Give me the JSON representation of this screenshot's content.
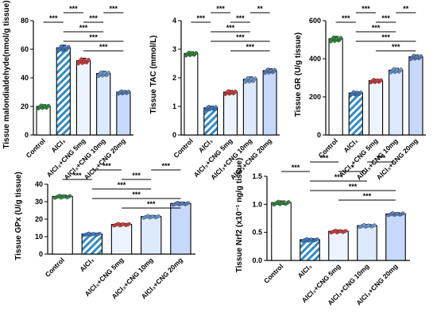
{
  "colors": {
    "control_fill": "#ffffff",
    "alcl3_hatch": "#2e8bc4",
    "cng5_fill": "#eef4ff",
    "cng10_fill": "#dde9ff",
    "cng20_fill": "#c6d9fb",
    "control_dots": "#2e8b3a",
    "alcl3_dots": "#3b7ec8",
    "cng5_dots": "#d53c3c",
    "cng10_dots": "#6a9ad6",
    "cng20_dots": "#5b7fc0"
  },
  "chart_data": [
    {
      "type": "bar",
      "ylabel": "Tissue malondialdehyde(nmol/g tissue)",
      "categories": [
        "Control",
        "AlCl3",
        "AlCl3+CNG 5mg",
        "AlCl3+CNG 10mg",
        "AlCl3+CNG 20mg"
      ],
      "values": [
        20,
        61,
        52,
        43,
        30
      ],
      "errors": [
        1.2,
        1.8,
        1.7,
        1.5,
        1.0
      ],
      "ylim": [
        0,
        80
      ],
      "yticks": [
        0,
        20,
        40,
        60,
        80
      ],
      "significance": [
        {
          "from": 0,
          "to": 1,
          "label": "***"
        },
        {
          "from": 1,
          "to": 2,
          "label": "***"
        },
        {
          "from": 1,
          "to": 3,
          "label": "***"
        },
        {
          "from": 1,
          "to": 4,
          "label": "***"
        },
        {
          "from": 2,
          "to": 3,
          "label": "***"
        },
        {
          "from": 2,
          "to": 4,
          "label": "***"
        },
        {
          "from": 3,
          "to": 4,
          "label": "***"
        }
      ]
    },
    {
      "type": "bar",
      "ylabel": "Tissue TAC (mmol/L)",
      "categories": [
        "Control",
        "AlCl3",
        "AlCl3+CNG 5mg",
        "AlCl3+CNG 10mg",
        "AlCl3+CNG 20mg"
      ],
      "values": [
        2.85,
        0.95,
        1.5,
        1.95,
        2.25
      ],
      "errors": [
        0.06,
        0.06,
        0.06,
        0.08,
        0.07
      ],
      "ylim": [
        0,
        4
      ],
      "yticks": [
        0,
        1,
        2,
        3,
        4
      ],
      "significance": [
        {
          "from": 0,
          "to": 1,
          "label": "***"
        },
        {
          "from": 1,
          "to": 2,
          "label": "***"
        },
        {
          "from": 1,
          "to": 3,
          "label": "***"
        },
        {
          "from": 1,
          "to": 4,
          "label": "***"
        },
        {
          "from": 2,
          "to": 3,
          "label": "***"
        },
        {
          "from": 2,
          "to": 4,
          "label": "***"
        },
        {
          "from": 3,
          "to": 4,
          "label": "**"
        }
      ]
    },
    {
      "type": "bar",
      "ylabel": "Tissue GR (U/g tissue)",
      "categories": [
        "Control",
        "AlCl3",
        "AlCl3+CNG 5mg",
        "AlCl3+CNG 10mg",
        "AlCl3+CNG 20mg"
      ],
      "values": [
        505,
        220,
        285,
        340,
        410
      ],
      "errors": [
        12,
        8,
        8,
        10,
        10
      ],
      "ylim": [
        0,
        600
      ],
      "yticks": [
        0,
        200,
        400,
        600
      ],
      "significance": [
        {
          "from": 0,
          "to": 1,
          "label": "***"
        },
        {
          "from": 1,
          "to": 2,
          "label": "***"
        },
        {
          "from": 1,
          "to": 3,
          "label": "***"
        },
        {
          "from": 1,
          "to": 4,
          "label": "***"
        },
        {
          "from": 2,
          "to": 3,
          "label": "***"
        },
        {
          "from": 2,
          "to": 4,
          "label": "***"
        },
        {
          "from": 3,
          "to": 4,
          "label": "**"
        }
      ]
    },
    {
      "type": "bar",
      "ylabel": "Tissue GPx (U/g tissue)",
      "categories": [
        "Control",
        "AlCl3",
        "AlCl3+CNG 5mg",
        "AlCl3+CNG 10mg",
        "AlCl3+CNG 20mg"
      ],
      "values": [
        33,
        11.5,
        17,
        21.5,
        29
      ],
      "errors": [
        0.7,
        0.5,
        0.6,
        0.6,
        0.7
      ],
      "ylim": [
        0,
        40
      ],
      "yticks": [
        0,
        10,
        20,
        30,
        40
      ],
      "significance": [
        {
          "from": 0,
          "to": 1,
          "label": "***"
        },
        {
          "from": 1,
          "to": 2,
          "label": "***"
        },
        {
          "from": 1,
          "to": 3,
          "label": "***"
        },
        {
          "from": 1,
          "to": 4,
          "label": "***"
        },
        {
          "from": 2,
          "to": 3,
          "label": "***"
        },
        {
          "from": 2,
          "to": 4,
          "label": "***"
        },
        {
          "from": 3,
          "to": 4,
          "label": "***"
        }
      ]
    },
    {
      "type": "bar",
      "ylabel": "Tissue Nrf2 (x10⁻¹ ng/g tissue)",
      "categories": [
        "Control",
        "AlCl3",
        "AlCl3+CNG 5mg",
        "AlCl3+CNG 10mg",
        "AlCl3+CNG 20mg"
      ],
      "values": [
        1.03,
        0.37,
        0.52,
        0.62,
        0.83
      ],
      "errors": [
        0.03,
        0.02,
        0.02,
        0.02,
        0.02
      ],
      "ylim": [
        0,
        1.5
      ],
      "yticks": [
        0.0,
        0.5,
        1.0,
        1.5
      ],
      "significance": [
        {
          "from": 0,
          "to": 1,
          "label": "***"
        },
        {
          "from": 1,
          "to": 2,
          "label": "***"
        },
        {
          "from": 1,
          "to": 3,
          "label": "***"
        },
        {
          "from": 1,
          "to": 4,
          "label": "***"
        },
        {
          "from": 2,
          "to": 3,
          "label": "*"
        },
        {
          "from": 2,
          "to": 4,
          "label": "***"
        },
        {
          "from": 3,
          "to": 4,
          "label": "***"
        }
      ]
    }
  ]
}
